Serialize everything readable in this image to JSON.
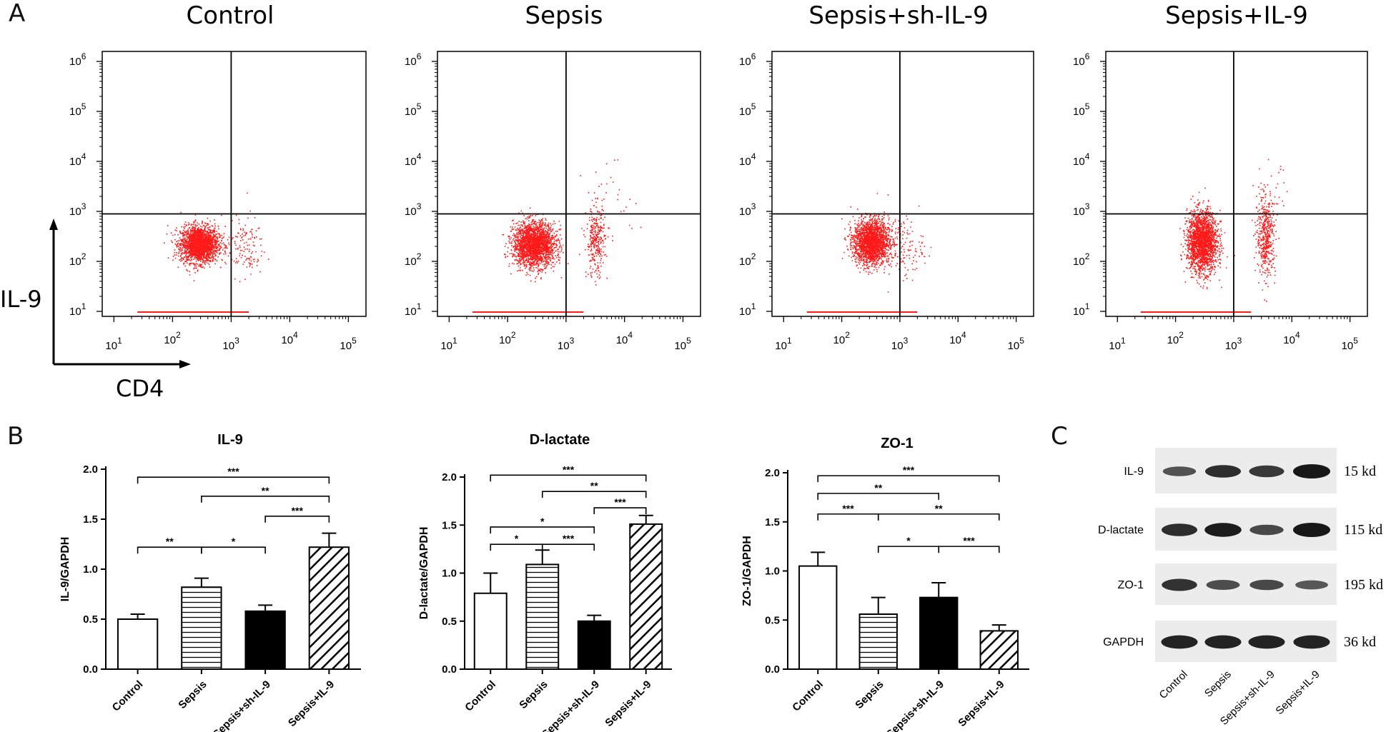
{
  "figure": {
    "panel_labels": [
      "A",
      "B",
      "C"
    ]
  },
  "flow": {
    "x_axis_label": "CD4",
    "y_axis_label": "IL-9",
    "x_tick_exponents": [
      "1",
      "2",
      "3",
      "4",
      "5"
    ],
    "y_tick_exponents": [
      "1",
      "2",
      "3",
      "4",
      "5",
      "6"
    ],
    "tick_base": "10",
    "dot_color": "#ff1a1a",
    "panels": [
      {
        "title": "Control",
        "populations": [
          {
            "cx": 2.45,
            "cy": 2.35,
            "sx": 0.16,
            "sy": 0.18,
            "n": 2200
          },
          {
            "cx": 3.2,
            "cy": 2.3,
            "sx": 0.18,
            "sy": 0.3,
            "n": 140
          }
        ]
      },
      {
        "title": "Sepsis",
        "populations": [
          {
            "cx": 2.45,
            "cy": 2.35,
            "sx": 0.18,
            "sy": 0.22,
            "n": 2300
          },
          {
            "cx": 3.5,
            "cy": 2.4,
            "sx": 0.08,
            "sy": 0.35,
            "n": 320
          },
          {
            "cx": 3.8,
            "cy": 3.2,
            "sx": 0.25,
            "sy": 0.35,
            "n": 30
          }
        ]
      },
      {
        "title": "Sepsis+sh-IL-9",
        "populations": [
          {
            "cx": 2.5,
            "cy": 2.4,
            "sx": 0.15,
            "sy": 0.22,
            "n": 2200
          },
          {
            "cx": 3.0,
            "cy": 2.3,
            "sx": 0.2,
            "sy": 0.3,
            "n": 160
          }
        ]
      },
      {
        "title": "Sepsis+IL-9",
        "populations": [
          {
            "cx": 2.45,
            "cy": 2.4,
            "sx": 0.13,
            "sy": 0.3,
            "n": 2100
          },
          {
            "cx": 3.55,
            "cy": 2.5,
            "sx": 0.08,
            "sy": 0.38,
            "n": 450
          },
          {
            "cx": 3.6,
            "cy": 3.3,
            "sx": 0.15,
            "sy": 0.3,
            "n": 40
          }
        ]
      }
    ]
  },
  "chart_data": [
    {
      "type": "bar",
      "title": "IL-9",
      "ylabel": "IL-9/GAPDH",
      "ylim": [
        0,
        2.0
      ],
      "yticks": [
        "0.0",
        "0.5",
        "1.0",
        "1.5",
        "2.0"
      ],
      "categories": [
        "Control",
        "Sepsis",
        "Sepsis+sh-IL-9",
        "Sepsis+IL-9"
      ],
      "values": [
        0.5,
        0.82,
        0.58,
        1.22
      ],
      "errors": [
        0.05,
        0.09,
        0.06,
        0.14
      ],
      "fills": [
        "white",
        "hlines",
        "black",
        "diag"
      ],
      "brackets": [
        {
          "from": 0,
          "to": 3,
          "label": "***",
          "level": 1.92
        },
        {
          "from": 1,
          "to": 3,
          "label": "**",
          "level": 1.73
        },
        {
          "from": 2,
          "to": 3,
          "label": "***",
          "level": 1.53
        },
        {
          "from": 0,
          "to": 1,
          "label": "**",
          "level": 1.22
        },
        {
          "from": 1,
          "to": 2,
          "label": "*",
          "level": 1.22
        }
      ]
    },
    {
      "type": "bar",
      "title": "D-lactate",
      "ylabel": "D-lactate/GAPDH",
      "ylim": [
        0,
        2.0
      ],
      "yticks": [
        "0.0",
        "0.5",
        "1.0",
        "1.5",
        "2.0"
      ],
      "categories": [
        "Control",
        "Sepsis",
        "Sepsis+sh-IL-9",
        "Sepsis+IL-9"
      ],
      "values": [
        0.79,
        1.09,
        0.5,
        1.51
      ],
      "errors": [
        0.21,
        0.15,
        0.06,
        0.09
      ],
      "fills": [
        "white",
        "hlines",
        "black",
        "diag"
      ],
      "brackets": [
        {
          "from": 0,
          "to": 3,
          "label": "***",
          "level": 2.02
        },
        {
          "from": 1,
          "to": 3,
          "label": "**",
          "level": 1.85
        },
        {
          "from": 2,
          "to": 3,
          "label": "***",
          "level": 1.68
        },
        {
          "from": 0,
          "to": 2,
          "label": "*",
          "level": 1.48
        },
        {
          "from": 0,
          "to": 1,
          "label": "*",
          "level": 1.3
        },
        {
          "from": 1,
          "to": 2,
          "label": "***",
          "level": 1.3
        }
      ]
    },
    {
      "type": "bar",
      "title": "ZO-1",
      "ylabel": "ZO-1/GAPDH",
      "ylim": [
        0,
        2.0
      ],
      "yticks": [
        "0.0",
        "0.5",
        "1.0",
        "1.5",
        "2.0"
      ],
      "categories": [
        "Control",
        "Sepsis",
        "Sepsis+sh-IL-9",
        "Sepsis+IL-9"
      ],
      "values": [
        1.05,
        0.56,
        0.73,
        0.39
      ],
      "errors": [
        0.14,
        0.17,
        0.15,
        0.06
      ],
      "fills": [
        "white",
        "hlines",
        "black",
        "diag"
      ],
      "brackets": [
        {
          "from": 0,
          "to": 3,
          "label": "***",
          "level": 1.97
        },
        {
          "from": 0,
          "to": 2,
          "label": "**",
          "level": 1.79
        },
        {
          "from": 0,
          "to": 1,
          "label": "***",
          "level": 1.58
        },
        {
          "from": 1,
          "to": 3,
          "label": "**",
          "level": 1.58
        },
        {
          "from": 1,
          "to": 2,
          "label": "*",
          "level": 1.25
        },
        {
          "from": 2,
          "to": 3,
          "label": "***",
          "level": 1.25
        }
      ]
    }
  ],
  "blot": {
    "rows": [
      {
        "label": "IL-9",
        "size": "15 kd",
        "intensity": [
          0.45,
          0.8,
          0.7,
          1.0
        ]
      },
      {
        "label": "D-lactate",
        "size": "115 kd",
        "intensity": [
          0.8,
          0.95,
          0.55,
          1.0
        ]
      },
      {
        "label": "ZO-1",
        "size": "195 kd",
        "intensity": [
          0.75,
          0.5,
          0.55,
          0.4
        ]
      },
      {
        "label": "GAPDH",
        "size": "36 kd",
        "intensity": [
          0.9,
          0.9,
          0.9,
          0.9
        ]
      }
    ],
    "lanes": [
      "Control",
      "Sepsis",
      "Sepsis+sh-IL-9",
      "Sepsis+IL-9"
    ]
  }
}
